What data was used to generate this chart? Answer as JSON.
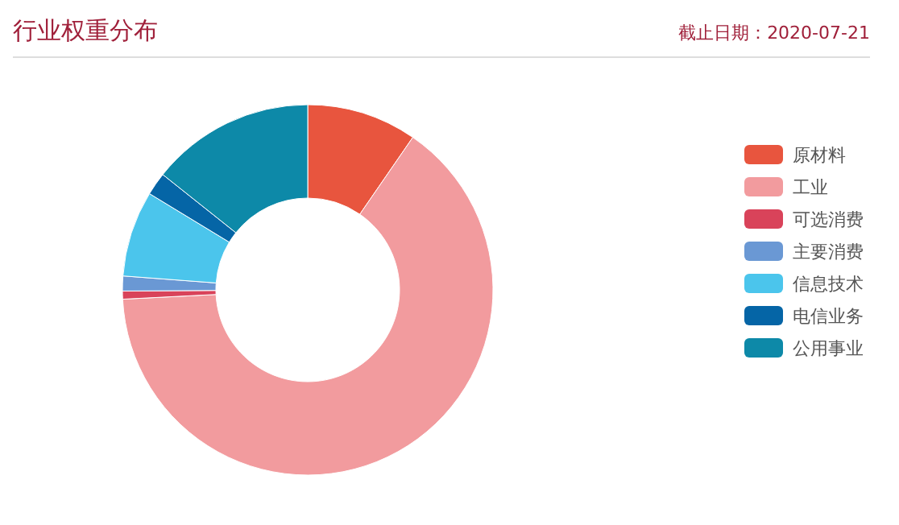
{
  "chart_data": {
    "type": "donut",
    "title": "行业权重分布",
    "annotations": [
      "截止日期：2020-07-21"
    ],
    "categories": [
      "原材料",
      "工业",
      "可选消费",
      "主要消费",
      "信息技术",
      "电信业务",
      "公用事业"
    ],
    "values": [
      9.6,
      64.6,
      0.7,
      1.3,
      7.5,
      2.0,
      14.3
    ],
    "colors": [
      "#e8553e",
      "#f29b9e",
      "#d9435a",
      "#6a98d4",
      "#4bc5ec",
      "#0565a6",
      "#0d89a8"
    ],
    "legend": "right"
  }
}
